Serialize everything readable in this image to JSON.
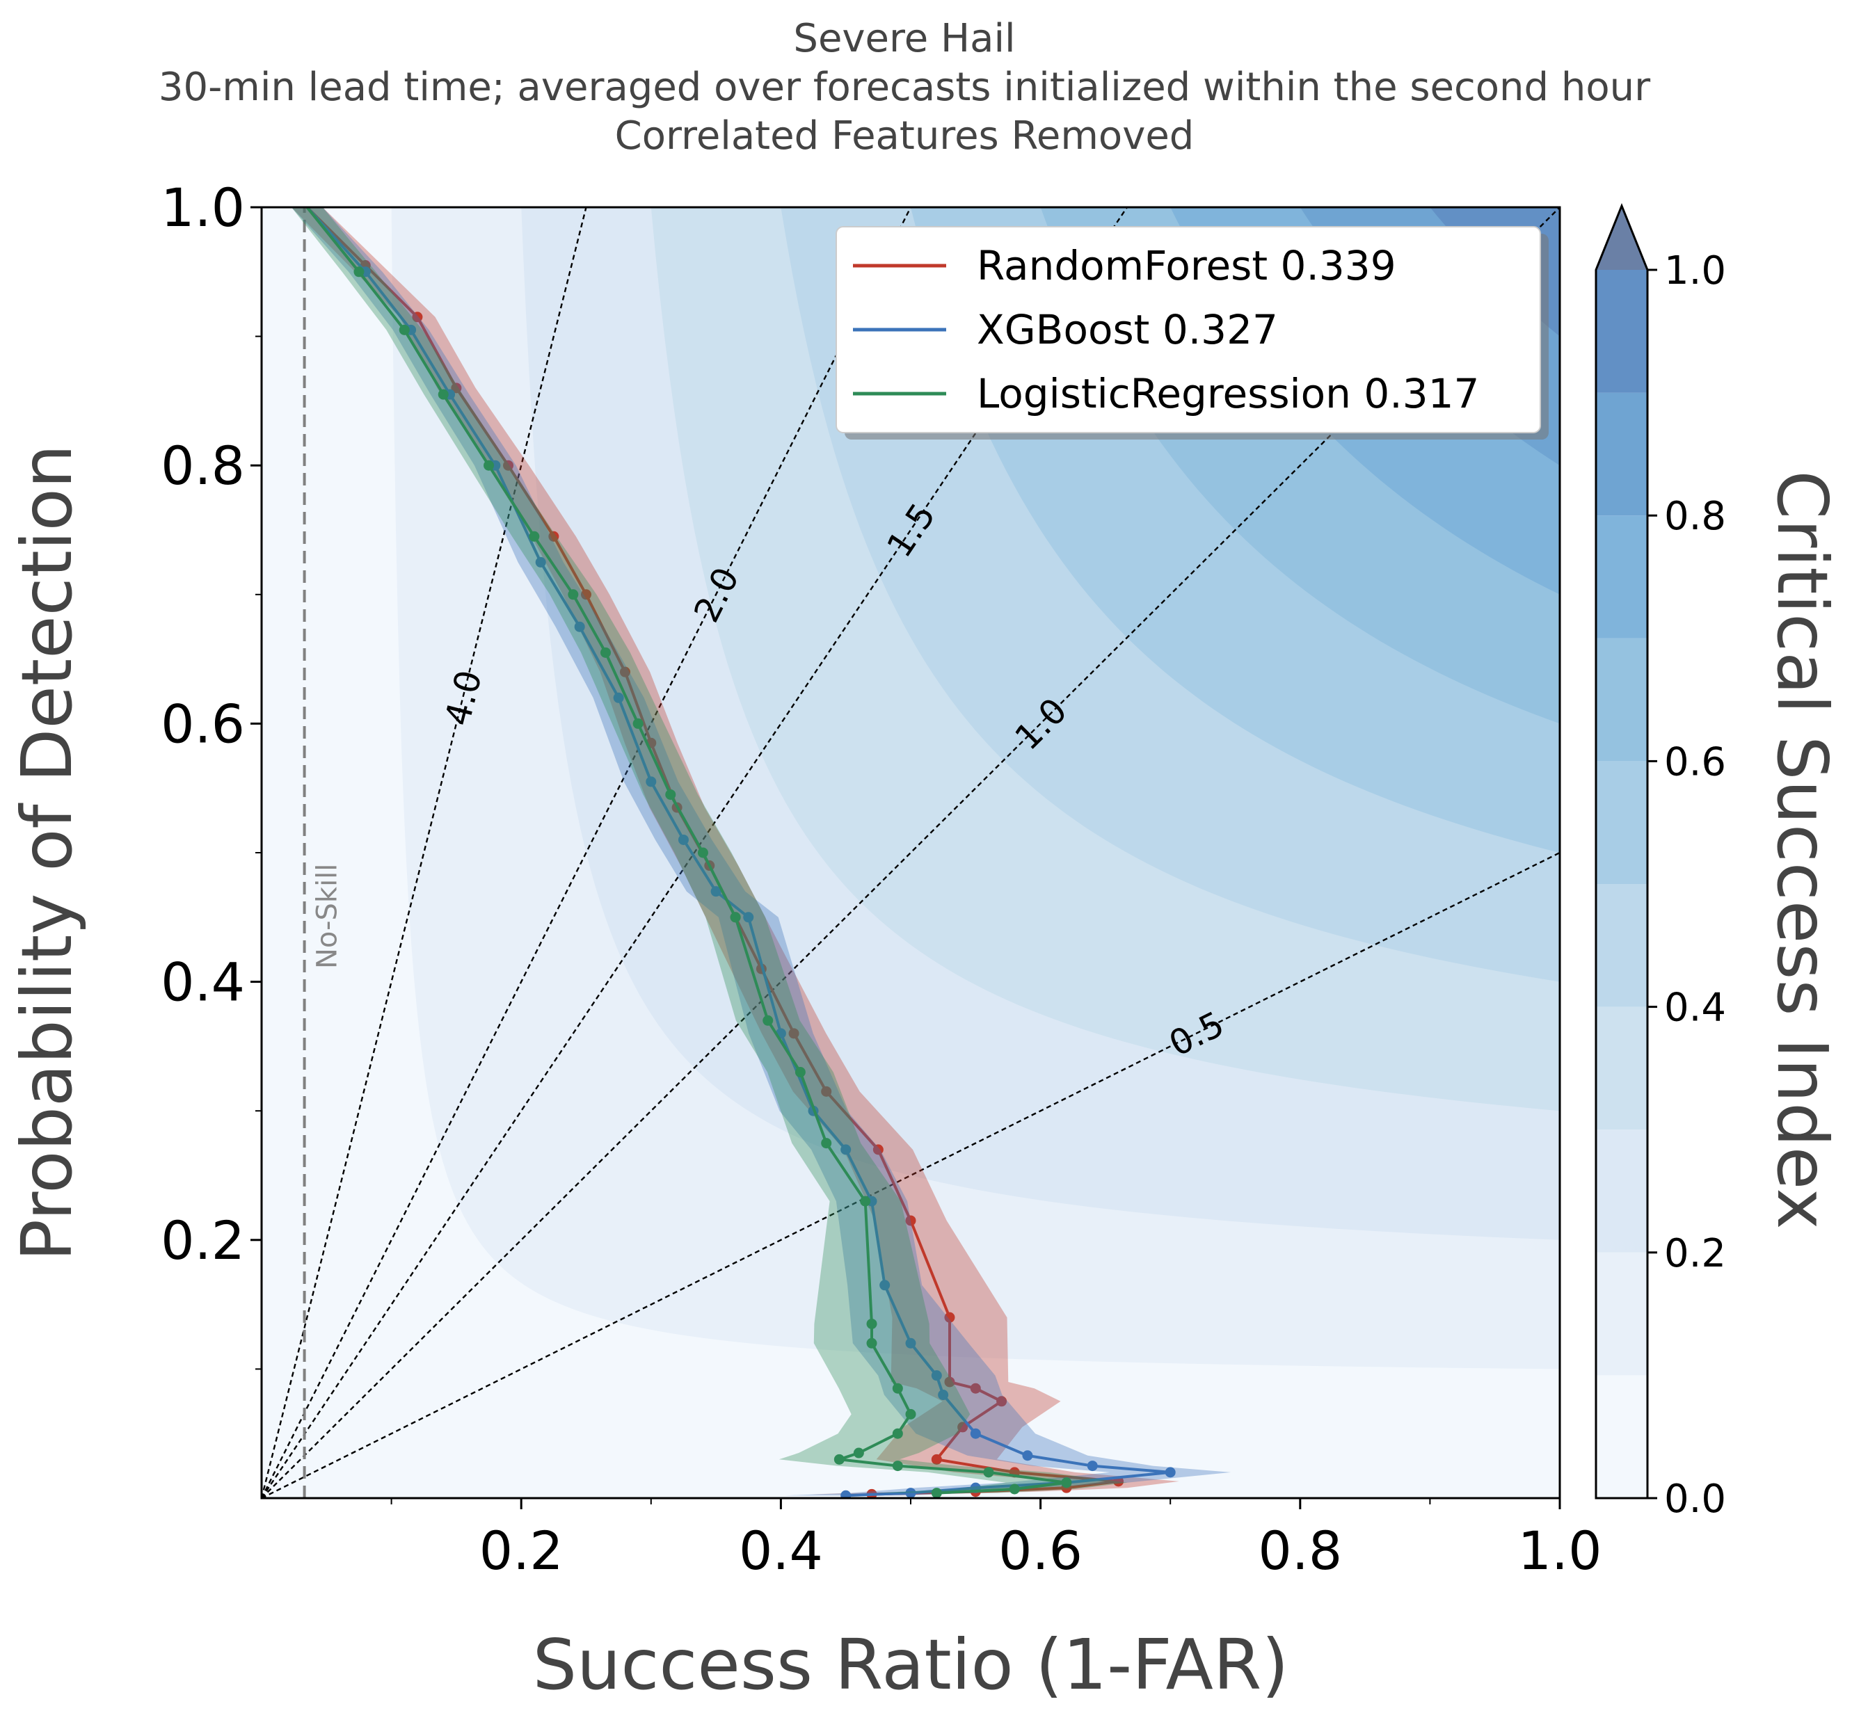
{
  "chart_data": {
    "type": "line",
    "title": [
      "Severe Hail",
      "30-min lead time; averaged over forecasts initialized within the second hour",
      "Correlated Features Removed"
    ],
    "xlabel": "Success Ratio (1-FAR)",
    "ylabel": "Probability of Detection",
    "xlim": [
      0,
      1.0
    ],
    "ylim": [
      0,
      1.0
    ],
    "xticks": [
      "0.2",
      "0.4",
      "0.6",
      "0.8",
      "1.0"
    ],
    "yticks": [
      "0.2",
      "0.4",
      "0.6",
      "0.8",
      "1.0"
    ],
    "xtick_values": [
      0.2,
      0.4,
      0.6,
      0.8,
      1.0
    ],
    "ytick_values": [
      0.2,
      0.4,
      0.6,
      0.8,
      1.0
    ],
    "grid": false,
    "legend_position": "top-right",
    "background": {
      "type": "filled-contour",
      "variable": "Critical Success Index",
      "levels": [
        0.0,
        0.1,
        0.2,
        0.3,
        0.4,
        0.5,
        0.6,
        0.7,
        0.8,
        0.9,
        1.0
      ],
      "colors": [
        "#f3f8fd",
        "#e8f0f9",
        "#dce8f5",
        "#cde1ef",
        "#bdd8eb",
        "#a8cde6",
        "#95c2e0",
        "#80b4db",
        "#6fa4d2",
        "#6290c5"
      ],
      "extend_color": "#6a80a6"
    },
    "colorbar": {
      "label": "Critical Success Index",
      "ticks": [
        "0.0",
        "0.2",
        "0.4",
        "0.6",
        "0.8",
        "1.0"
      ],
      "tick_values": [
        0.0,
        0.2,
        0.4,
        0.6,
        0.8,
        1.0
      ]
    },
    "frequency_bias_lines": [
      {
        "label": "4.0",
        "bias": 4.0
      },
      {
        "label": "2.0",
        "bias": 2.0
      },
      {
        "label": "1.5",
        "bias": 1.5
      },
      {
        "label": "1.0",
        "bias": 1.0
      },
      {
        "label": "0.5",
        "bias": 0.5
      }
    ],
    "no_skill": {
      "label": "No-Skill",
      "x": 0.033
    },
    "series": [
      {
        "name": "RandomForest 0.339",
        "color": "#c0392b",
        "x": [
          0.035,
          0.08,
          0.12,
          0.15,
          0.19,
          0.225,
          0.25,
          0.28,
          0.3,
          0.32,
          0.345,
          0.365,
          0.385,
          0.41,
          0.435,
          0.475,
          0.5,
          0.53,
          0.53,
          0.55,
          0.57,
          0.54,
          0.52,
          0.58,
          0.66,
          0.62,
          0.55,
          0.47
        ],
        "y": [
          1.0,
          0.955,
          0.915,
          0.86,
          0.8,
          0.745,
          0.7,
          0.64,
          0.585,
          0.535,
          0.49,
          0.45,
          0.41,
          0.36,
          0.315,
          0.27,
          0.215,
          0.14,
          0.09,
          0.085,
          0.075,
          0.055,
          0.03,
          0.02,
          0.013,
          0.008,
          0.005,
          0.003
        ]
      },
      {
        "name": "XGBoost 0.327",
        "color": "#3b73b9",
        "x": [
          0.035,
          0.08,
          0.115,
          0.145,
          0.18,
          0.215,
          0.245,
          0.275,
          0.3,
          0.325,
          0.35,
          0.375,
          0.4,
          0.425,
          0.45,
          0.47,
          0.48,
          0.5,
          0.52,
          0.525,
          0.55,
          0.59,
          0.64,
          0.7,
          0.62,
          0.55,
          0.5,
          0.45
        ],
        "y": [
          1.0,
          0.95,
          0.905,
          0.855,
          0.8,
          0.725,
          0.675,
          0.62,
          0.555,
          0.51,
          0.47,
          0.45,
          0.36,
          0.3,
          0.27,
          0.23,
          0.165,
          0.12,
          0.095,
          0.08,
          0.05,
          0.033,
          0.025,
          0.02,
          0.012,
          0.008,
          0.004,
          0.002
        ]
      },
      {
        "name": "LogisticRegression 0.317",
        "color": "#2e8b57",
        "x": [
          0.035,
          0.075,
          0.11,
          0.14,
          0.175,
          0.21,
          0.24,
          0.265,
          0.29,
          0.315,
          0.34,
          0.365,
          0.39,
          0.415,
          0.435,
          0.465,
          0.47,
          0.47,
          0.49,
          0.5,
          0.49,
          0.46,
          0.445,
          0.49,
          0.56,
          0.62,
          0.58,
          0.52
        ],
        "y": [
          1.0,
          0.95,
          0.905,
          0.855,
          0.8,
          0.745,
          0.7,
          0.655,
          0.6,
          0.545,
          0.5,
          0.45,
          0.37,
          0.33,
          0.275,
          0.23,
          0.135,
          0.12,
          0.085,
          0.065,
          0.05,
          0.035,
          0.03,
          0.025,
          0.02,
          0.012,
          0.007,
          0.004
        ]
      }
    ]
  }
}
